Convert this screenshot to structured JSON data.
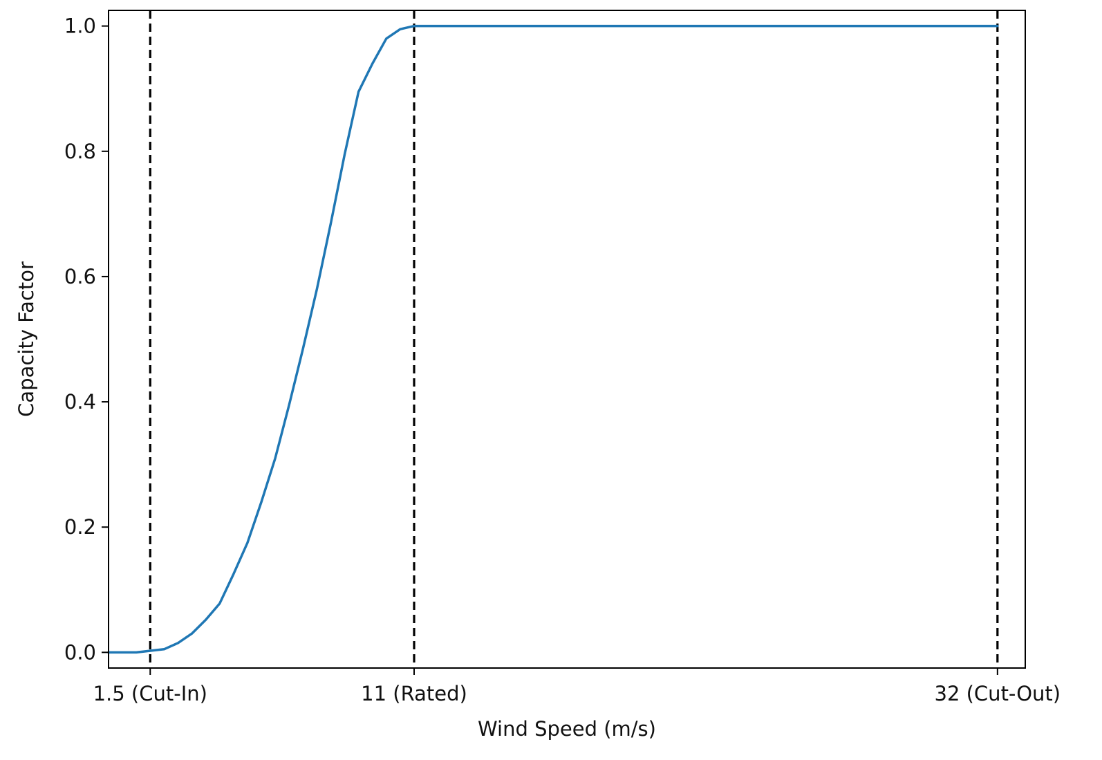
{
  "chart_data": {
    "type": "line",
    "title": "",
    "xlabel": "Wind Speed (m/s)",
    "ylabel": "Capacity Factor",
    "xlim": [
      0,
      33
    ],
    "ylim": [
      -0.025,
      1.025
    ],
    "grid": false,
    "x_ticks": [
      {
        "value": 1.5,
        "label": "1.5 (Cut-In)"
      },
      {
        "value": 11,
        "label": "11 (Rated)"
      },
      {
        "value": 32,
        "label": "32 (Cut-Out)"
      }
    ],
    "y_ticks": [
      {
        "value": 0.0,
        "label": "0.0"
      },
      {
        "value": 0.2,
        "label": "0.2"
      },
      {
        "value": 0.4,
        "label": "0.4"
      },
      {
        "value": 0.6,
        "label": "0.6"
      },
      {
        "value": 0.8,
        "label": "0.8"
      },
      {
        "value": 1.0,
        "label": "1.0"
      }
    ],
    "vlines": [
      1.5,
      11,
      32
    ],
    "series": [
      {
        "color": "#1f77b4",
        "x": [
          0,
          1.0,
          2.0,
          2.5,
          3.0,
          3.5,
          4.0,
          4.5,
          5.0,
          5.5,
          6.0,
          6.5,
          7.0,
          7.5,
          8.0,
          8.5,
          9.0,
          9.5,
          10.0,
          10.5,
          11.0,
          32.0
        ],
        "y": [
          0.0,
          0.0,
          0.005,
          0.015,
          0.03,
          0.052,
          0.078,
          0.125,
          0.175,
          0.24,
          0.31,
          0.395,
          0.485,
          0.58,
          0.685,
          0.795,
          0.895,
          0.94,
          0.98,
          0.995,
          1.0,
          1.0
        ]
      }
    ]
  }
}
